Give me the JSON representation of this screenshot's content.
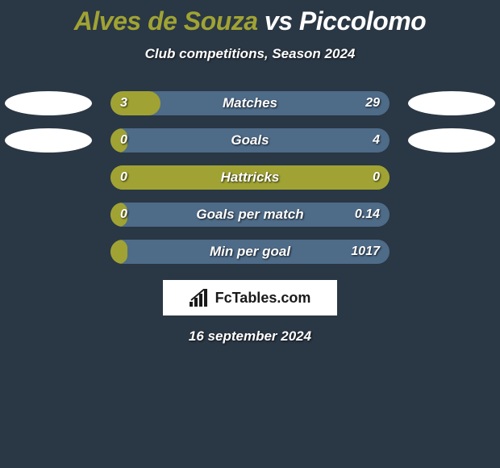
{
  "title": {
    "player1": "Alves de Souza",
    "player2": "Piccolomo",
    "separator": " vs ",
    "color1": "#a0a333",
    "color2": "#ffffff",
    "fontsize": 32
  },
  "subtitle": "Club competitions, Season 2024",
  "colors": {
    "background": "#2a3744",
    "accent_left": "#a0a333",
    "ellipse_left": "#ffffff",
    "ellipse_right": "#ffffff",
    "text": "#ffffff"
  },
  "bars": {
    "track_width": 346,
    "track_height": 30,
    "track_radius": 15,
    "items": [
      {
        "label": "Matches",
        "left_val": "3",
        "right_val": "29",
        "left_pct": 18,
        "track_bg": "#4e6b88",
        "left_bg": "#a0a333",
        "show_left_ellipse": true,
        "show_right_ellipse": true
      },
      {
        "label": "Goals",
        "left_val": "0",
        "right_val": "4",
        "left_pct": 6,
        "track_bg": "#4e6b88",
        "left_bg": "#a0a333",
        "show_left_ellipse": true,
        "show_right_ellipse": true
      },
      {
        "label": "Hattricks",
        "left_val": "0",
        "right_val": "0",
        "left_pct": 100,
        "track_bg": "#a0a333",
        "left_bg": "#a0a333",
        "show_left_ellipse": false,
        "show_right_ellipse": false
      },
      {
        "label": "Goals per match",
        "left_val": "0",
        "right_val": "0.14",
        "left_pct": 6,
        "track_bg": "#4e6b88",
        "left_bg": "#a0a333",
        "show_left_ellipse": false,
        "show_right_ellipse": false
      },
      {
        "label": "Min per goal",
        "left_val": "",
        "right_val": "1017",
        "left_pct": 6,
        "track_bg": "#4e6b88",
        "left_bg": "#a0a333",
        "show_left_ellipse": false,
        "show_right_ellipse": false
      }
    ]
  },
  "logo": {
    "text": "FcTables.com",
    "icon_color": "#1a1a1a",
    "box_bg": "#ffffff"
  },
  "date": "16 september 2024"
}
